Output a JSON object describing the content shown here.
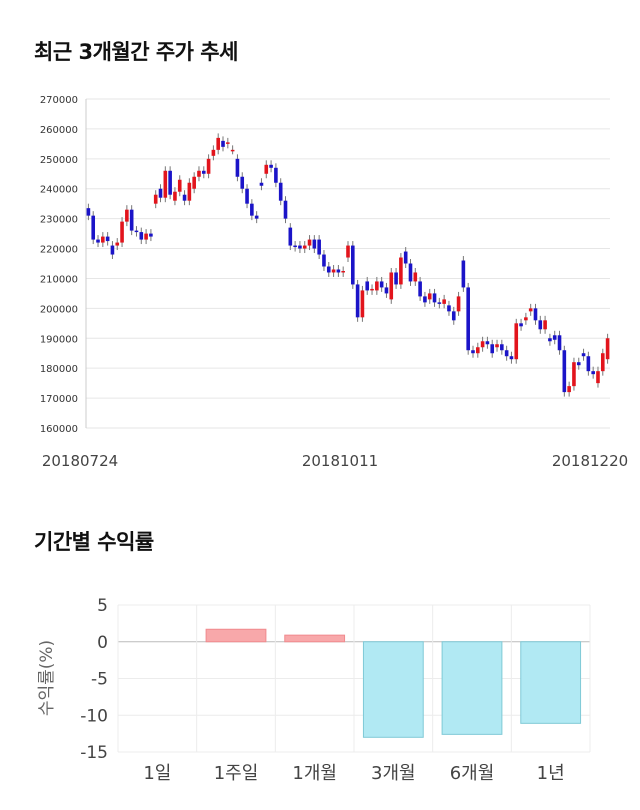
{
  "titles": {
    "price": "최근 3개월간 주가 추세",
    "returns": "기간별 수익률"
  },
  "colors": {
    "up": "#e2141c",
    "down": "#1b14c8",
    "positive_bar": "#f8a8aa",
    "negative_bar": "#b1e9f3",
    "negative_bar_border": "#7fc9d6"
  },
  "chart_data": [
    {
      "type": "candlestick",
      "title": "최근 3개월간 주가 추세",
      "ylim": [
        160000,
        270000
      ],
      "yticks": [
        "270000",
        "260000",
        "250000",
        "240000",
        "230000",
        "220000",
        "210000",
        "200000",
        "190000",
        "180000",
        "170000",
        "160000"
      ],
      "xticks": [
        "20180724",
        "20181011",
        "20181220"
      ],
      "candles": [
        [
          233500,
          231000
        ],
        [
          231000,
          223000
        ],
        [
          223000,
          222000
        ],
        [
          222000,
          224000
        ],
        [
          224000,
          222500
        ],
        [
          221000,
          218000
        ],
        [
          221000,
          222000
        ],
        [
          222000,
          229000
        ],
        [
          229000,
          233000
        ],
        [
          233000,
          226000
        ],
        [
          226000,
          225500
        ],
        [
          225500,
          223000
        ],
        [
          223000,
          225000
        ],
        [
          225000,
          224000
        ],
        [
          235000,
          238000
        ],
        [
          240000,
          237000
        ],
        [
          237000,
          246000
        ],
        [
          246000,
          238000
        ],
        [
          236000,
          239000
        ],
        [
          239000,
          243000
        ],
        [
          238000,
          236000
        ],
        [
          236000,
          242000
        ],
        [
          240000,
          244000
        ],
        [
          244000,
          246000
        ],
        [
          246000,
          245000
        ],
        [
          245000,
          250000
        ],
        [
          251000,
          253000
        ],
        [
          253000,
          257000
        ],
        [
          256000,
          254000
        ],
        [
          255000,
          255500
        ],
        [
          253000,
          253000
        ],
        [
          250000,
          244000
        ],
        [
          244000,
          240000
        ],
        [
          240000,
          235000
        ],
        [
          235000,
          231000
        ],
        [
          231000,
          230000
        ],
        [
          242000,
          241000
        ],
        [
          245000,
          248000
        ],
        [
          248000,
          247000
        ],
        [
          247000,
          242000
        ],
        [
          242000,
          236000
        ],
        [
          236000,
          230000
        ],
        [
          227000,
          221000
        ],
        [
          221000,
          220500
        ],
        [
          221000,
          220000
        ],
        [
          220000,
          221000
        ],
        [
          221000,
          223000
        ],
        [
          223000,
          220000
        ],
        [
          223000,
          218000
        ],
        [
          218000,
          214000
        ],
        [
          214000,
          212000
        ],
        [
          212000,
          213000
        ],
        [
          213000,
          212000
        ],
        [
          212000,
          212500
        ],
        [
          217000,
          221000
        ],
        [
          221000,
          208000
        ],
        [
          208000,
          197000
        ],
        [
          197000,
          206000
        ],
        [
          209000,
          206000
        ],
        [
          206000,
          206500
        ],
        [
          206000,
          209000
        ],
        [
          209000,
          207000
        ],
        [
          207000,
          205000
        ],
        [
          203000,
          212000
        ],
        [
          212000,
          208000
        ],
        [
          208000,
          217000
        ],
        [
          219000,
          215000
        ],
        [
          215000,
          209000
        ],
        [
          209000,
          212000
        ],
        [
          209000,
          204000
        ],
        [
          204000,
          202000
        ],
        [
          203000,
          205000
        ],
        [
          205000,
          202000
        ],
        [
          202000,
          201500
        ],
        [
          201500,
          203000
        ],
        [
          201000,
          199000
        ],
        [
          199000,
          196000
        ],
        [
          199000,
          204000
        ],
        [
          216000,
          207000
        ],
        [
          207000,
          186000
        ],
        [
          186000,
          185000
        ],
        [
          185000,
          187000
        ],
        [
          187000,
          189000
        ],
        [
          189000,
          188000
        ],
        [
          188000,
          185000
        ],
        [
          187000,
          188000
        ],
        [
          188000,
          186000
        ],
        [
          186000,
          184000
        ],
        [
          184000,
          183000
        ],
        [
          183000,
          195000
        ],
        [
          195000,
          194000
        ],
        [
          196000,
          197000
        ],
        [
          199000,
          200000
        ],
        [
          200000,
          196000
        ],
        [
          196000,
          193000
        ],
        [
          193000,
          196000
        ],
        [
          190000,
          189000
        ],
        [
          191000,
          189500
        ],
        [
          191000,
          186000
        ],
        [
          186000,
          172000
        ],
        [
          172000,
          174000
        ],
        [
          174000,
          182000
        ],
        [
          182000,
          181000
        ],
        [
          185000,
          184000
        ],
        [
          184000,
          179000
        ],
        [
          179000,
          178000
        ],
        [
          175000,
          179000
        ],
        [
          179000,
          185000
        ],
        [
          183000,
          190000
        ]
      ]
    },
    {
      "type": "bar",
      "title": "기간별 수익률",
      "ylabel": "수익률(%)",
      "ylim": [
        -15,
        5
      ],
      "yticks": [
        "5",
        "0",
        "-5",
        "-10",
        "-15"
      ],
      "categories": [
        "1일",
        "1주일",
        "1개월",
        "3개월",
        "6개월",
        "1년"
      ],
      "values": [
        0.0,
        1.7,
        0.9,
        -13.0,
        -12.6,
        -11.1
      ]
    }
  ]
}
